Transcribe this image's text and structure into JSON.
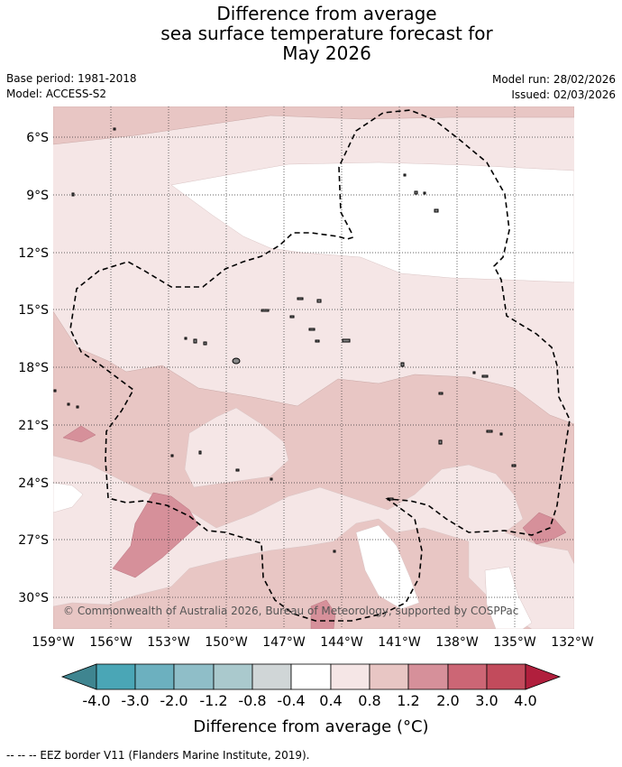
{
  "title": {
    "line1": "Difference from average",
    "line2": "sea surface temperature forecast for",
    "line3": "May 2026"
  },
  "meta": {
    "base_period": "Base period: 1981-2018",
    "model": "Model: ACCESS-S2",
    "model_run": "Model run: 28/02/2026",
    "issued": "Issued: 02/03/2026"
  },
  "map": {
    "lat_labels": [
      "6°S",
      "9°S",
      "12°S",
      "15°S",
      "18°S",
      "21°S",
      "24°S",
      "27°S",
      "30°S"
    ],
    "lon_labels": [
      "159°W",
      "156°W",
      "153°W",
      "150°W",
      "147°W",
      "144°W",
      "141°W",
      "138°W",
      "135°W",
      "132°W"
    ],
    "copyright": "© Commonwealth of Australia 2026, Bureau of Meteorology, supported by COSPPac",
    "colors": {
      "ocean_neutral": "#ffffff",
      "band_0_4_0_8": "#f5e6e6",
      "band_0_8_1_2": "#e8c6c4",
      "band_1_2_2_0": "#d6909a",
      "band_2_0_3_0": "#cc6675"
    }
  },
  "legend": {
    "ticks": [
      "-4.0",
      "-3.0",
      "-2.0",
      "-1.2",
      "-0.8",
      "-0.4",
      "0.4",
      "0.8",
      "1.2",
      "2.0",
      "3.0",
      "4.0"
    ],
    "colors": [
      "#3f8590",
      "#4aa6b6",
      "#6cb0bf",
      "#8fbec8",
      "#aac9cd",
      "#d0d6d7",
      "#ffffff",
      "#f5e6e6",
      "#e8c6c4",
      "#d6909a",
      "#cc6675",
      "#c24b5c",
      "#b11f3d"
    ],
    "title": "Difference from average (°C)"
  },
  "footnote": "--  --  -- EEZ border V11 (Flanders Marine Institute, 2019)."
}
